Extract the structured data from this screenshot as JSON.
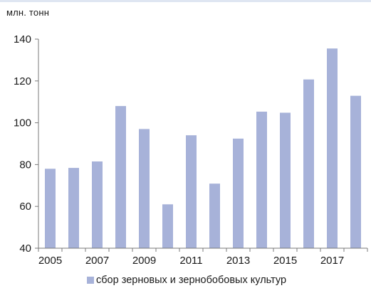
{
  "unit_label": "млн. тонн",
  "colors": {
    "bar": "#a7b2d9",
    "axis": "#7a7a7a",
    "text": "#1a1a1a"
  },
  "chart_data": {
    "type": "bar",
    "title": "",
    "xlabel": "",
    "ylabel": "млн. тонн",
    "ylim": [
      40,
      140
    ],
    "yticks": [
      40,
      60,
      80,
      100,
      120,
      140
    ],
    "grid": false,
    "legend_position": "bottom",
    "categories": [
      "2005",
      "2006",
      "2007",
      "2008",
      "2009",
      "2010",
      "2011",
      "2012",
      "2013",
      "2014",
      "2015",
      "2016",
      "2017",
      "2018"
    ],
    "xtick_labels": [
      "2005",
      "",
      "2007",
      "",
      "2009",
      "",
      "2011",
      "",
      "2013",
      "",
      "2015",
      "",
      "2017",
      ""
    ],
    "series": [
      {
        "name": "сбор зерновых и зернобобовых культур",
        "values": [
          78,
          78.4,
          81.5,
          108,
          97,
          61,
          94,
          70.9,
          92.4,
          105.3,
          104.8,
          120.7,
          135.5,
          112.9
        ]
      }
    ]
  }
}
